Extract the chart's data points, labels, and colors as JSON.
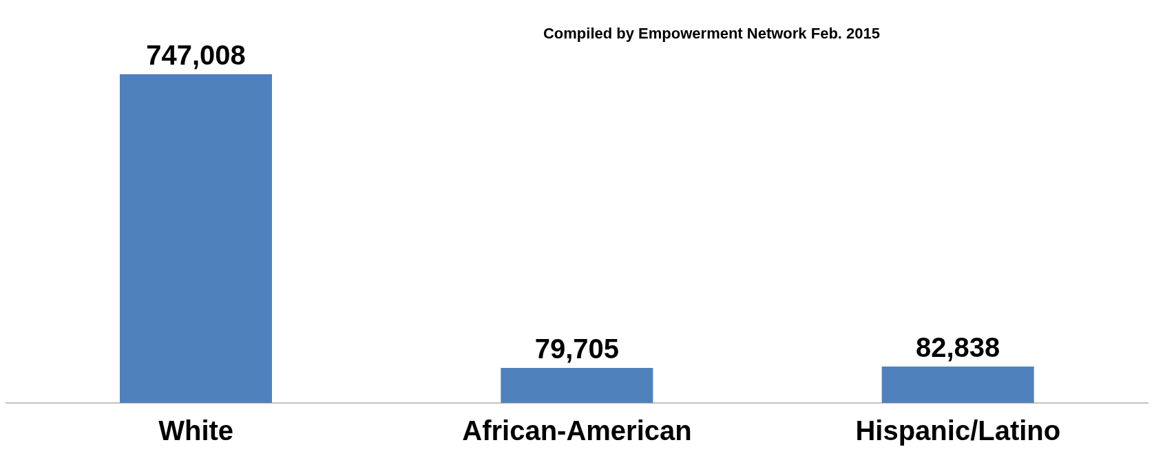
{
  "chart_data": {
    "type": "bar",
    "categories": [
      "White",
      "African-American",
      "Hispanic/Latino"
    ],
    "values": [
      747008,
      79705,
      82838
    ],
    "color": "#4f81bd",
    "value_labels": [
      "747,008",
      "79,705",
      "82,838"
    ],
    "grid": false,
    "tick_labels": "x",
    "annotations": [
      "Compiled by Empowerment Network Feb. 2015"
    ]
  }
}
